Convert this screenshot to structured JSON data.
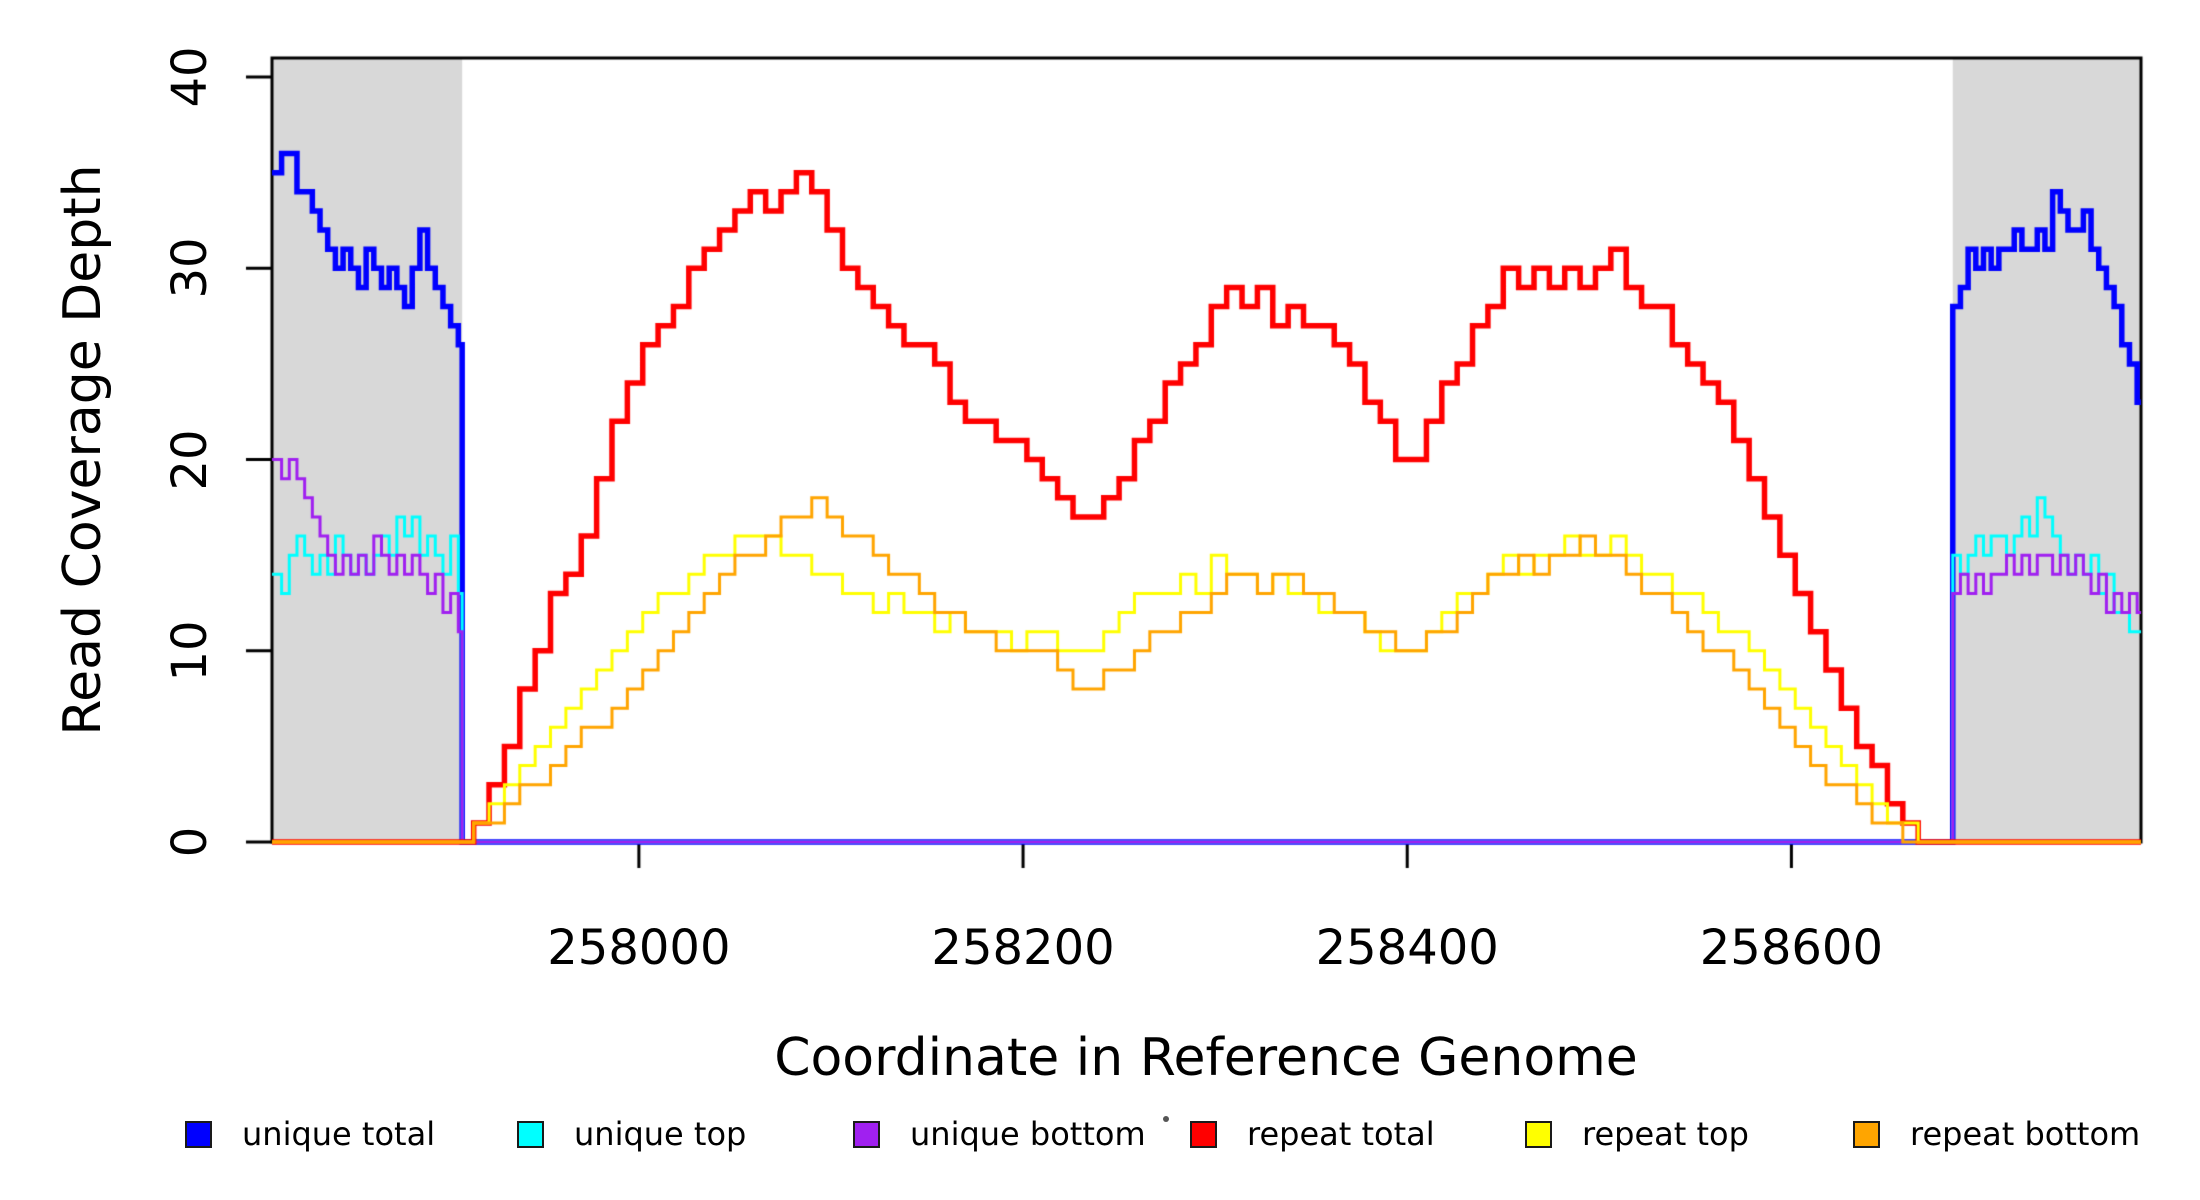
{
  "chart_data": {
    "type": "step_line",
    "title": "",
    "xlabel": "Coordinate in Reference Genome",
    "ylabel": "Read Coverage Depth",
    "xlim": [
      257809,
      258782
    ],
    "ylim": [
      0,
      41
    ],
    "x_ticks": [
      258000,
      258200,
      258400,
      258600
    ],
    "x_tick_labels": [
      "258000",
      "258200",
      "258400",
      "258600"
    ],
    "y_ticks": [
      0,
      10,
      20,
      30,
      40
    ],
    "y_tick_labels": [
      "0",
      "10",
      "20",
      "30",
      "40"
    ],
    "grid": false,
    "background": "#FFFFFF",
    "legend_position": "bottom",
    "shaded_x_regions": [
      {
        "x0": 257809,
        "x1": 257908,
        "color": "#D8D8D8"
      },
      {
        "x0": 258684,
        "x1": 258782,
        "color": "#D8D8D8"
      }
    ],
    "series": [
      {
        "name": "unique total",
        "color": "#0000FF",
        "line_width": 5.5,
        "segments": [
          {
            "x0": 257810,
            "dx": 4,
            "v": [
              35,
              36,
              36,
              34,
              34,
              33,
              32,
              31,
              30,
              31,
              30,
              29,
              31,
              30,
              29,
              30,
              29,
              28,
              30,
              32,
              30,
              29,
              28,
              27,
              26
            ]
          },
          {
            "x0": 257908,
            "dx": 776,
            "v": [
              0,
              0
            ]
          },
          {
            "x0": 258684,
            "dx": 4,
            "v": [
              28,
              29,
              31,
              30,
              31,
              30,
              31,
              31,
              32,
              31,
              31,
              32,
              31,
              34,
              33,
              32,
              32,
              33,
              31,
              30,
              29,
              28,
              26,
              25,
              23
            ]
          }
        ]
      },
      {
        "name": "unique top",
        "color": "#00FFFF",
        "line_width": 3,
        "segments": [
          {
            "x0": 257810,
            "dx": 4,
            "v": [
              14,
              13,
              15,
              16,
              15,
              14,
              15,
              14,
              16,
              15,
              14,
              15,
              14,
              15,
              16,
              15,
              17,
              16,
              17,
              15,
              16,
              15,
              14,
              16,
              13
            ]
          },
          {
            "x0": 257908,
            "dx": 776,
            "v": [
              0,
              0
            ]
          },
          {
            "x0": 258684,
            "dx": 4,
            "v": [
              15,
              14,
              15,
              16,
              15,
              16,
              16,
              15,
              16,
              17,
              16,
              18,
              17,
              16,
              15,
              14,
              15,
              14,
              15,
              13,
              14,
              12,
              12,
              11,
              11
            ]
          }
        ]
      },
      {
        "name": "unique bottom",
        "color": "#A020F0",
        "line_width": 3,
        "segments": [
          {
            "x0": 257810,
            "dx": 4,
            "v": [
              20,
              19,
              20,
              19,
              18,
              17,
              16,
              15,
              14,
              15,
              14,
              15,
              14,
              16,
              15,
              14,
              15,
              14,
              15,
              14,
              13,
              14,
              12,
              13,
              11
            ]
          },
          {
            "x0": 257908,
            "dx": 776,
            "v": [
              0,
              0
            ]
          },
          {
            "x0": 258684,
            "dx": 4,
            "v": [
              13,
              14,
              13,
              14,
              13,
              14,
              14,
              15,
              14,
              15,
              14,
              15,
              15,
              14,
              15,
              14,
              15,
              14,
              13,
              14,
              12,
              13,
              12,
              13,
              12
            ]
          }
        ]
      },
      {
        "name": "repeat total",
        "color": "#FF0000",
        "line_width": 5.5,
        "segments": [
          {
            "x0": 257810,
            "dx": 8,
            "v": [
              0,
              0,
              0,
              0,
              0,
              0,
              0,
              0,
              0,
              0,
              0,
              0,
              0,
              1,
              3,
              5,
              8,
              10,
              13,
              14,
              16,
              19,
              22,
              24,
              26,
              27,
              28,
              30,
              31,
              32,
              33,
              34,
              33,
              34,
              35,
              34,
              32,
              30,
              29,
              28,
              27,
              26,
              26,
              25,
              23,
              22,
              22,
              21,
              21,
              20,
              19,
              18,
              17,
              17,
              18,
              19,
              21,
              22,
              24,
              25,
              26,
              28,
              29,
              28,
              29,
              27,
              28,
              27,
              27,
              26,
              25,
              23,
              22,
              20,
              20,
              22,
              24,
              25,
              27,
              28,
              30,
              29,
              30,
              29,
              30,
              29,
              30,
              31,
              29,
              28,
              28,
              26,
              25,
              24,
              23,
              21,
              19,
              17,
              15,
              13,
              11,
              9,
              7,
              5,
              4,
              2,
              1,
              0,
              0,
              0,
              0,
              0,
              0,
              0,
              0,
              0,
              0,
              0,
              0,
              0,
              0,
              0
            ]
          }
        ]
      },
      {
        "name": "repeat top",
        "color": "#FFFF00",
        "line_width": 3,
        "segments": [
          {
            "x0": 257810,
            "dx": 8,
            "v": [
              0,
              0,
              0,
              0,
              0,
              0,
              0,
              0,
              0,
              0,
              0,
              0,
              0,
              1,
              2,
              3,
              4,
              5,
              6,
              7,
              8,
              9,
              10,
              11,
              12,
              13,
              13,
              14,
              15,
              15,
              16,
              16,
              16,
              15,
              15,
              14,
              14,
              13,
              13,
              12,
              13,
              12,
              12,
              11,
              12,
              11,
              11,
              11,
              10,
              11,
              11,
              10,
              10,
              10,
              11,
              12,
              13,
              13,
              13,
              14,
              13,
              15,
              14,
              14,
              13,
              14,
              13,
              13,
              12,
              12,
              12,
              11,
              10,
              10,
              10,
              11,
              12,
              13,
              13,
              14,
              15,
              14,
              15,
              15,
              16,
              15,
              15,
              16,
              15,
              14,
              14,
              13,
              13,
              12,
              11,
              11,
              10,
              9,
              8,
              7,
              6,
              5,
              4,
              3,
              2,
              1,
              1,
              0,
              0,
              0,
              0,
              0,
              0,
              0,
              0,
              0,
              0,
              0,
              0,
              0,
              0,
              0
            ]
          }
        ]
      },
      {
        "name": "repeat bottom",
        "color": "#FFA500",
        "line_width": 3,
        "segments": [
          {
            "x0": 257810,
            "dx": 8,
            "v": [
              0,
              0,
              0,
              0,
              0,
              0,
              0,
              0,
              0,
              0,
              0,
              0,
              0,
              1,
              1,
              2,
              3,
              3,
              4,
              5,
              6,
              6,
              7,
              8,
              9,
              10,
              11,
              12,
              13,
              14,
              15,
              15,
              16,
              17,
              17,
              18,
              17,
              16,
              16,
              15,
              14,
              14,
              13,
              12,
              12,
              11,
              11,
              10,
              10,
              10,
              10,
              9,
              8,
              8,
              9,
              9,
              10,
              11,
              11,
              12,
              12,
              13,
              14,
              14,
              13,
              14,
              14,
              13,
              13,
              12,
              12,
              11,
              11,
              10,
              10,
              11,
              11,
              12,
              13,
              14,
              14,
              15,
              14,
              15,
              15,
              16,
              15,
              15,
              14,
              13,
              13,
              12,
              11,
              10,
              10,
              9,
              8,
              7,
              6,
              5,
              4,
              3,
              3,
              2,
              1,
              1,
              0,
              0,
              0,
              0,
              0,
              0,
              0,
              0,
              0,
              0,
              0,
              0,
              0,
              0,
              0,
              0
            ]
          }
        ]
      }
    ]
  },
  "legend": {
    "items": [
      {
        "label": "unique total",
        "color": "#0000FF"
      },
      {
        "label": "unique top",
        "color": "#00FFFF"
      },
      {
        "label": "unique bottom",
        "color": "#A020F0"
      },
      {
        "label": "repeat total",
        "color": "#FF0000"
      },
      {
        "label": "repeat top",
        "color": "#FFFF00"
      },
      {
        "label": "repeat bottom",
        "color": "#FFA500"
      }
    ]
  }
}
